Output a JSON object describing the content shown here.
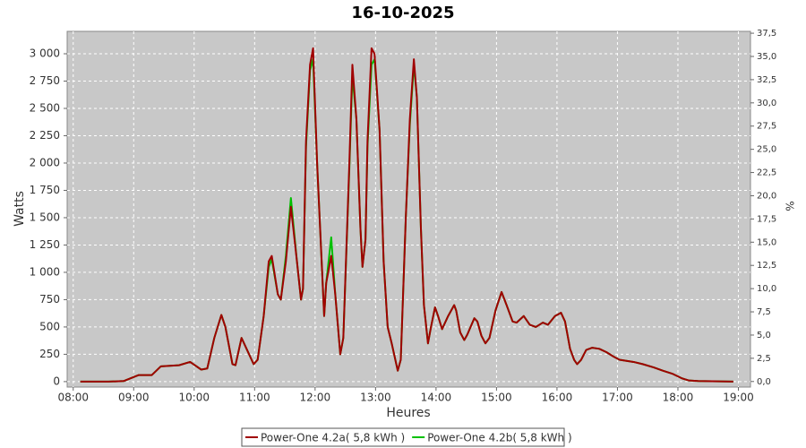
{
  "chart_data": {
    "type": "line",
    "title": "16-10-2025",
    "xlabel": "Heures",
    "ylabel": "Watts",
    "y2label": "%",
    "grid": true,
    "legend": "bottom",
    "x": [
      "08:07",
      "08:35",
      "08:50",
      "09:05",
      "09:18",
      "09:27",
      "09:45",
      "09:56",
      "10:07",
      "10:13",
      "10:20",
      "10:27",
      "10:31",
      "10:38",
      "10:41",
      "10:47",
      "10:52",
      "10:59",
      "11:03",
      "11:09",
      "11:14",
      "11:17",
      "11:23",
      "11:26",
      "11:31",
      "11:36",
      "11:42",
      "11:46",
      "11:48",
      "11:51",
      "11:55",
      "11:58",
      "12:02",
      "12:09",
      "12:11",
      "12:16",
      "12:20",
      "12:25",
      "12:28",
      "12:34",
      "12:37",
      "12:41",
      "12:45",
      "12:47",
      "12:50",
      "12:52",
      "12:56",
      "12:59",
      "13:04",
      "13:08",
      "13:12",
      "13:16",
      "13:22",
      "13:25",
      "13:30",
      "13:34",
      "13:38",
      "13:41",
      "13:45",
      "13:48",
      "13:52",
      "13:55",
      "13:59",
      "14:02",
      "14:06",
      "14:12",
      "14:18",
      "14:20",
      "14:24",
      "14:28",
      "14:31",
      "14:38",
      "14:41",
      "14:45",
      "14:49",
      "14:53",
      "14:59",
      "15:05",
      "15:10",
      "15:16",
      "15:20",
      "15:27",
      "15:33",
      "15:39",
      "15:46",
      "15:51",
      "15:58",
      "16:04",
      "16:08",
      "16:13",
      "16:17",
      "16:20",
      "16:24",
      "16:29",
      "16:35",
      "16:42",
      "16:49",
      "16:56",
      "17:02",
      "17:09",
      "17:16",
      "17:25",
      "17:36",
      "17:45",
      "17:55",
      "18:04",
      "18:11",
      "18:20",
      "18:55"
    ],
    "series": [
      {
        "name": "Power-One 4.2a( 5,8 kWh )",
        "color": "#a00000",
        "values": [
          0,
          0,
          5,
          60,
          60,
          140,
          150,
          180,
          110,
          120,
          400,
          610,
          500,
          160,
          150,
          400,
          300,
          160,
          200,
          600,
          1100,
          1150,
          800,
          750,
          1100,
          1600,
          1100,
          750,
          850,
          2200,
          2900,
          3050,
          2000,
          600,
          900,
          1150,
          800,
          250,
          400,
          2000,
          2900,
          2400,
          1400,
          1050,
          1300,
          2200,
          3050,
          3000,
          2300,
          1100,
          500,
          350,
          100,
          200,
          1500,
          2400,
          2950,
          2600,
          1400,
          700,
          350,
          500,
          680,
          600,
          480,
          600,
          700,
          650,
          450,
          380,
          430,
          580,
          550,
          420,
          350,
          400,
          650,
          820,
          700,
          550,
          540,
          600,
          520,
          500,
          540,
          520,
          600,
          630,
          550,
          300,
          200,
          160,
          200,
          290,
          310,
          300,
          270,
          230,
          200,
          190,
          180,
          160,
          130,
          100,
          70,
          30,
          10,
          5,
          0
        ]
      },
      {
        "name": "Power-One 4.2b( 5,8 kWh )",
        "color": "#00c000",
        "values": [
          0,
          0,
          5,
          60,
          60,
          140,
          150,
          180,
          110,
          120,
          400,
          610,
          500,
          160,
          150,
          400,
          300,
          160,
          200,
          600,
          1050,
          1120,
          800,
          750,
          1150,
          1680,
          1100,
          750,
          850,
          2150,
          2850,
          2950,
          2000,
          600,
          900,
          1320,
          800,
          250,
          400,
          1950,
          2800,
          2400,
          1400,
          1050,
          1300,
          2150,
          2900,
          2950,
          2300,
          1100,
          500,
          350,
          100,
          200,
          1500,
          2350,
          2900,
          2600,
          1400,
          700,
          350,
          500,
          680,
          600,
          480,
          600,
          700,
          650,
          450,
          380,
          430,
          580,
          550,
          420,
          350,
          400,
          650,
          820,
          700,
          550,
          540,
          600,
          520,
          500,
          540,
          520,
          600,
          630,
          550,
          300,
          200,
          160,
          200,
          290,
          310,
          300,
          270,
          230,
          200,
          190,
          180,
          160,
          130,
          100,
          70,
          30,
          10,
          5,
          0
        ]
      }
    ],
    "xlim": [
      "07:54",
      "19:12"
    ],
    "xticks": [
      "08:00",
      "09:00",
      "10:00",
      "11:00",
      "12:00",
      "13:00",
      "14:00",
      "15:00",
      "16:00",
      "17:00",
      "18:00",
      "19:00"
    ],
    "ylim": [
      -50,
      3205
    ],
    "yticks": [
      0,
      250,
      500,
      750,
      {
        "value": 1000,
        "label": "1 000"
      },
      {
        "value": 1250,
        "label": "1 250"
      },
      {
        "value": 1500,
        "label": "1 500"
      },
      {
        "value": 1750,
        "label": "1 750"
      },
      {
        "value": 2000,
        "label": "2 000"
      },
      {
        "value": 2250,
        "label": "2 250"
      },
      {
        "value": 2500,
        "label": "2 500"
      },
      {
        "value": 2750,
        "label": "2 750"
      },
      {
        "value": 3000,
        "label": "3 000"
      }
    ],
    "y2lim": [
      -0.6,
      37.7
    ],
    "y2ticks": [
      {
        "value": 0,
        "label": "0,0"
      },
      {
        "value": 2.5,
        "label": "2,5"
      },
      {
        "value": 5,
        "label": "5,0"
      },
      {
        "value": 7.5,
        "label": "7,5"
      },
      {
        "value": 10,
        "label": "10,0"
      },
      {
        "value": 12.5,
        "label": "12,5"
      },
      {
        "value": 15,
        "label": "15,0"
      },
      {
        "value": 17.5,
        "label": "17,5"
      },
      {
        "value": 20,
        "label": "20,0"
      },
      {
        "value": 22.5,
        "label": "22,5"
      },
      {
        "value": 25,
        "label": "25,0"
      },
      {
        "value": 27.5,
        "label": "27,5"
      },
      {
        "value": 30,
        "label": "30,0"
      },
      {
        "value": 32.5,
        "label": "32,5"
      },
      {
        "value": 35,
        "label": "35,0"
      },
      {
        "value": 37.5,
        "label": "37,5"
      }
    ]
  }
}
